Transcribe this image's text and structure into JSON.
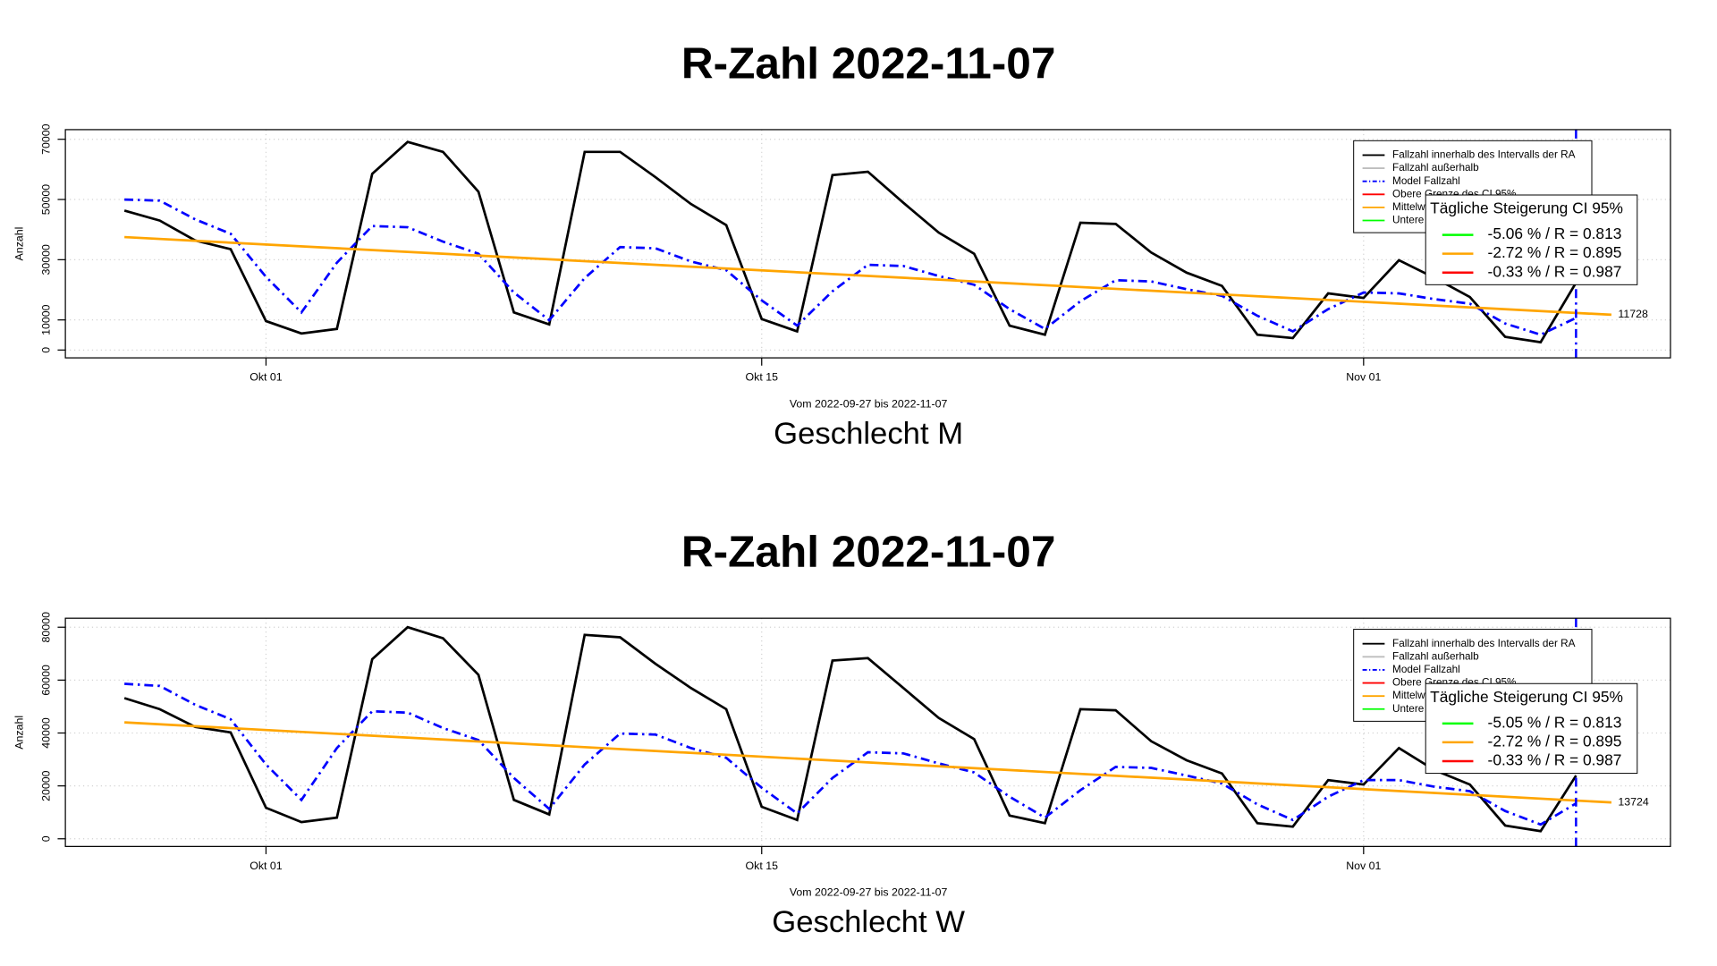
{
  "chart_data": [
    {
      "type": "line",
      "title": "R-Zahl 2022-11-07",
      "subtitle": "Geschlecht M",
      "xlabel": "Vom 2022-09-27 bis 2022-11-07",
      "ylabel": "Anzahl",
      "x": [
        "2022-09-27",
        "2022-09-28",
        "2022-09-29",
        "2022-09-30",
        "2022-10-01",
        "2022-10-02",
        "2022-10-03",
        "2022-10-04",
        "2022-10-05",
        "2022-10-06",
        "2022-10-07",
        "2022-10-08",
        "2022-10-09",
        "2022-10-10",
        "2022-10-11",
        "2022-10-12",
        "2022-10-13",
        "2022-10-14",
        "2022-10-15",
        "2022-10-16",
        "2022-10-17",
        "2022-10-18",
        "2022-10-19",
        "2022-10-20",
        "2022-10-21",
        "2022-10-22",
        "2022-10-23",
        "2022-10-24",
        "2022-10-25",
        "2022-10-26",
        "2022-10-27",
        "2022-10-28",
        "2022-10-29",
        "2022-10-30",
        "2022-10-31",
        "2022-11-01",
        "2022-11-02",
        "2022-11-03",
        "2022-11-04",
        "2022-11-05",
        "2022-11-06",
        "2022-11-07"
      ],
      "xlim": [
        "2022-09-25T08:00",
        "2022-11-09T16:00"
      ],
      "xticks": [
        {
          "value": "2022-10-01",
          "label": "Okt 01"
        },
        {
          "value": "2022-10-15",
          "label": "Okt 15"
        },
        {
          "value": "2022-11-01",
          "label": "Nov 01"
        }
      ],
      "ylim": [
        -2600,
        73200
      ],
      "yticks": [
        0,
        10000,
        30000,
        50000,
        70000
      ],
      "grid": true,
      "series": [
        {
          "name": "Fallzahl innerhalb des Intervalls der RA",
          "color": "#000000",
          "dash": "solid",
          "values": [
            46300,
            43000,
            36400,
            33500,
            9600,
            5500,
            7000,
            58500,
            69100,
            65800,
            52600,
            12500,
            8500,
            65800,
            65800,
            57400,
            48500,
            41500,
            10300,
            6200,
            58100,
            59200,
            48900,
            39000,
            32000,
            8100,
            5100,
            42300,
            41900,
            32400,
            25700,
            21300,
            5100,
            4000,
            18800,
            17300,
            29800,
            24000,
            17600,
            4400,
            2600,
            22400
          ]
        },
        {
          "name": "Fallzahl außerhalb",
          "color": "#bebebe",
          "dash": "solid"
        },
        {
          "name": "Model Fallzahl",
          "color": "#0000ff",
          "dash": "dashdot",
          "values": [
            50000,
            49600,
            43400,
            38600,
            24300,
            12500,
            29000,
            41200,
            40800,
            36000,
            32000,
            19100,
            9900,
            23900,
            34200,
            33800,
            29400,
            26500,
            16500,
            8100,
            19500,
            28300,
            27900,
            24600,
            21700,
            13600,
            7000,
            16200,
            23200,
            22800,
            20200,
            18000,
            11400,
            6200,
            13600,
            19100,
            18800,
            16900,
            15400,
            8800,
            5100,
            10700
          ]
        },
        {
          "name": "Obere Grenze des CI 95%",
          "color": "#ff0000",
          "dash": "solid"
        },
        {
          "name": "Mittelwert",
          "color": "#ffa500",
          "dash": "solid",
          "x": [
            "2022-09-27",
            "2022-11-08"
          ],
          "values": [
            37500,
            11728
          ]
        },
        {
          "name": "Untere Grenze des CI 95%",
          "color": "#00ff00",
          "dash": "solid"
        }
      ],
      "vline": {
        "x": "2022-11-07",
        "color": "#0000ff"
      },
      "ci_legend": {
        "title": "Tägliche Steigerung CI  95%",
        "entries": [
          {
            "label": "-5.06 % / R = 0.813",
            "color": "#00ff00"
          },
          {
            "label": "-2.72 % / R = 0.895",
            "color": "#ffa500"
          },
          {
            "label": "-0.33 % / R = 0.987",
            "color": "#ff0000"
          }
        ]
      }
    },
    {
      "type": "line",
      "title": "R-Zahl 2022-11-07",
      "subtitle": "Geschlecht W",
      "xlabel": "Vom 2022-09-27 bis 2022-11-07",
      "ylabel": "Anzahl",
      "x": [
        "2022-09-27",
        "2022-09-28",
        "2022-09-29",
        "2022-09-30",
        "2022-10-01",
        "2022-10-02",
        "2022-10-03",
        "2022-10-04",
        "2022-10-05",
        "2022-10-06",
        "2022-10-07",
        "2022-10-08",
        "2022-10-09",
        "2022-10-10",
        "2022-10-11",
        "2022-10-12",
        "2022-10-13",
        "2022-10-14",
        "2022-10-15",
        "2022-10-16",
        "2022-10-17",
        "2022-10-18",
        "2022-10-19",
        "2022-10-20",
        "2022-10-21",
        "2022-10-22",
        "2022-10-23",
        "2022-10-24",
        "2022-10-25",
        "2022-10-26",
        "2022-10-27",
        "2022-10-28",
        "2022-10-29",
        "2022-10-30",
        "2022-10-31",
        "2022-11-01",
        "2022-11-02",
        "2022-11-03",
        "2022-11-04",
        "2022-11-05",
        "2022-11-06",
        "2022-11-07"
      ],
      "xlim": [
        "2022-09-25T08:00",
        "2022-11-09T16:00"
      ],
      "xticks": [
        {
          "value": "2022-10-01",
          "label": "Okt 01"
        },
        {
          "value": "2022-10-15",
          "label": "Okt 15"
        },
        {
          "value": "2022-11-01",
          "label": "Nov 01"
        }
      ],
      "ylim": [
        -2900,
        83400
      ],
      "yticks": [
        0,
        20000,
        40000,
        60000,
        80000
      ],
      "grid": true,
      "series": [
        {
          "name": "Fallzahl innerhalb des Intervalls der RA",
          "color": "#000000",
          "dash": "solid",
          "values": [
            53200,
            49000,
            42300,
            40200,
            11700,
            6300,
            8000,
            67900,
            80000,
            75800,
            62000,
            14700,
            9200,
            77100,
            76200,
            66200,
            57000,
            49000,
            12100,
            7100,
            67400,
            68300,
            57000,
            45700,
            37700,
            8800,
            5900,
            49000,
            48600,
            36900,
            29700,
            24700,
            5900,
            4600,
            22200,
            20500,
            34300,
            26000,
            20500,
            5000,
            2900,
            23900
          ]
        },
        {
          "name": "Fallzahl außerhalb",
          "color": "#bebebe",
          "dash": "solid"
        },
        {
          "name": "Model Fallzahl",
          "color": "#0000ff",
          "dash": "dashdot",
          "values": [
            58600,
            57800,
            50700,
            45200,
            28100,
            14700,
            34300,
            48200,
            47700,
            41900,
            37300,
            23000,
            11300,
            28100,
            39800,
            39400,
            34300,
            30600,
            19300,
            9600,
            23000,
            32700,
            32300,
            28500,
            25100,
            15900,
            8000,
            18400,
            27200,
            26800,
            23900,
            20900,
            13000,
            7100,
            15900,
            22200,
            22200,
            19700,
            18000,
            10500,
            5400,
            13400
          ]
        },
        {
          "name": "Obere Grenze des CI 95%",
          "color": "#ff0000",
          "dash": "solid"
        },
        {
          "name": "Mittelwert",
          "color": "#ffa500",
          "dash": "solid",
          "x": [
            "2022-09-27",
            "2022-11-08"
          ],
          "values": [
            44000,
            13724
          ]
        },
        {
          "name": "Untere Grenze des CI 95%",
          "color": "#00ff00",
          "dash": "solid"
        }
      ],
      "vline": {
        "x": "2022-11-07",
        "color": "#0000ff"
      },
      "ci_legend": {
        "title": "Tägliche Steigerung CI  95%",
        "entries": [
          {
            "label": "-5.05 % / R = 0.813",
            "color": "#00ff00"
          },
          {
            "label": "-2.72 % / R = 0.895",
            "color": "#ffa500"
          },
          {
            "label": "-0.33 % / R = 0.987",
            "color": "#ff0000"
          }
        ]
      }
    }
  ]
}
